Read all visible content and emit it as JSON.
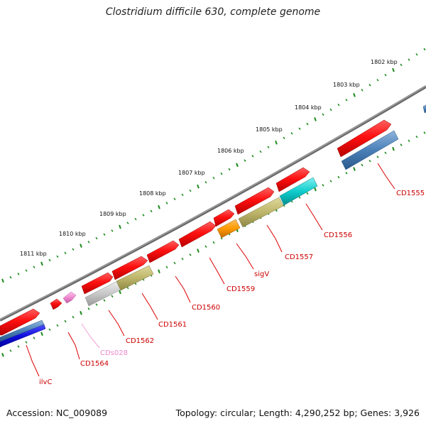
{
  "title": "Clostridium difficile 630, complete genome",
  "accession": "Accession: NC_009089",
  "topology": "Topology: circular; Length: 4,290,252 bp; Genes: 3,926",
  "colors": {
    "backbone": "#7a7a7a",
    "tick": "#1a8a1a",
    "label_red": "#cc0000",
    "label_pink": "#ee88cc",
    "leader": "#dd0000"
  },
  "scale_labels": [
    {
      "text": "1811 kbp"
    },
    {
      "text": "1810 kbp"
    },
    {
      "text": "1809 kbp"
    },
    {
      "text": "1808 kbp"
    },
    {
      "text": "1807 kbp"
    },
    {
      "text": "1806 kbp"
    },
    {
      "text": "1805 kbp"
    },
    {
      "text": "1804 kbp"
    },
    {
      "text": "1803 kbp"
    },
    {
      "text": "1802 kbp"
    }
  ],
  "features": [
    {
      "name": "ilvC",
      "color": "#ee1111",
      "category": "blue-navy"
    },
    {
      "name": "CD1564",
      "color": "#ee1111",
      "category": "red"
    },
    {
      "name": "CDs028",
      "color": "#ee88cc",
      "category": "pink"
    },
    {
      "name": "CD1562",
      "color": "#ee1111",
      "category": "grey"
    },
    {
      "name": "CD1561",
      "color": "#ee1111",
      "category": "olive"
    },
    {
      "name": "CD1560",
      "color": "#ee1111",
      "category": "red"
    },
    {
      "name": "CD1559",
      "color": "#ee1111",
      "category": "red"
    },
    {
      "name": "sigV",
      "color": "#ff9900",
      "category": "orange"
    },
    {
      "name": "CD1557",
      "color": "#ee1111",
      "category": "olive"
    },
    {
      "name": "CD1556",
      "color": "#ee1111",
      "category": "cyan"
    },
    {
      "name": "CD1555",
      "color": "#ee1111",
      "category": "steelblue"
    }
  ]
}
